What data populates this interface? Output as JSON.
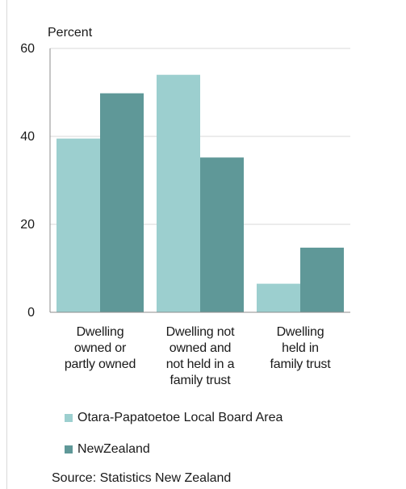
{
  "chart_data": {
    "type": "bar",
    "ylabel": "Percent",
    "ylim": [
      0,
      60
    ],
    "yticks": [
      "0",
      "20",
      "40",
      "60"
    ],
    "categories": [
      [
        "Dwelling",
        "owned or",
        "partly owned"
      ],
      [
        "Dwelling not",
        "owned and",
        "not held in a",
        "family trust"
      ],
      [
        "Dwelling",
        "held in",
        "family trust"
      ]
    ],
    "series": [
      {
        "name": "Otara-Papatoetoe Local Board Area",
        "color": "#9ccfcf",
        "values": [
          39.5,
          54,
          6.5
        ]
      },
      {
        "name": "NewZealand",
        "color": "#5f9898",
        "values": [
          49.8,
          35.2,
          14.7
        ]
      }
    ],
    "grid": true,
    "legend": "bottom"
  },
  "source": "Source: Statistics New Zealand"
}
